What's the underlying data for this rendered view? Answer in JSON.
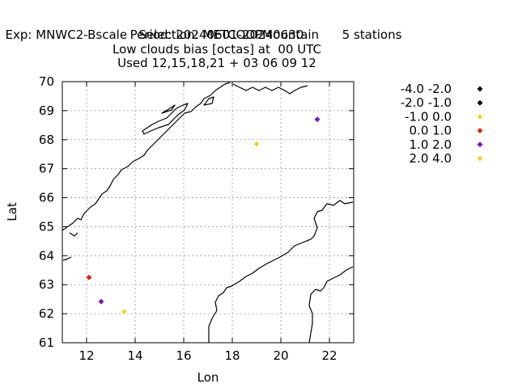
{
  "header": {
    "line1_left": "Exp: MNWC2-Bscale",
    "line1_mid": "Selection: METCOOPMountain",
    "line1_right": "5 stations",
    "line2": "Period: 20240601-20240630",
    "line3": "Low clouds bias [octas] at  00 UTC",
    "line4": "Used 12,15,18,21 + 03 06 09 12"
  },
  "chart_data": {
    "type": "scatter",
    "xlabel": "Lon",
    "ylabel": "Lat",
    "xlim": [
      11,
      23
    ],
    "ylim": [
      61,
      70
    ],
    "xticks": [
      12,
      14,
      16,
      18,
      20,
      22
    ],
    "yticks": [
      61,
      62,
      63,
      64,
      65,
      66,
      67,
      68,
      69,
      70
    ],
    "grid": true,
    "legend_position": "right",
    "legend": [
      {
        "label": "-4.0 -2.0",
        "color": "#000000"
      },
      {
        "label": "-2.0 -1.0",
        "color": "#000000"
      },
      {
        "label": "-1.0 0.0",
        "color": "#e8d638"
      },
      {
        "label": "0.0 1.0",
        "color": "#d62a1e"
      },
      {
        "label": "1.0 2.0",
        "color": "#7a10c0"
      },
      {
        "label": "2.0 4.0",
        "color": "#e8d638"
      }
    ],
    "points": [
      {
        "lon": 12.1,
        "lat": 63.25,
        "color": "#d62a1e"
      },
      {
        "lon": 12.6,
        "lat": 62.42,
        "color": "#7a10c0"
      },
      {
        "lon": 13.55,
        "lat": 62.07,
        "color": "#e8d638"
      },
      {
        "lon": 19.0,
        "lat": 67.85,
        "color": "#e8d638"
      },
      {
        "lon": 21.5,
        "lat": 68.7,
        "color": "#7a10c0"
      }
    ]
  }
}
